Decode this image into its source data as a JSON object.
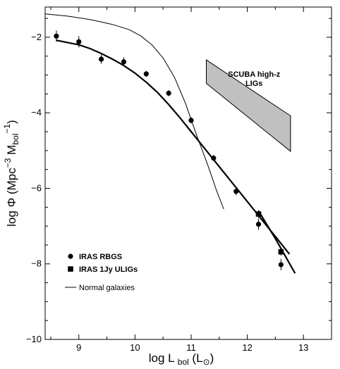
{
  "chart_data": {
    "type": "scatter",
    "title": "",
    "xlabel": {
      "main": "log L",
      "sub": "bol",
      "unit_open": "(L",
      "unit_sym": "⊙",
      "unit_close": ")"
    },
    "ylabel": {
      "main": "log Φ  (Mpc",
      "sup1": "−3",
      "mid": " M",
      "sub": "bol",
      "sup2": "−1",
      "close": ")"
    },
    "xlim": [
      8.4,
      13.5
    ],
    "ylim": [
      -10,
      -1.2
    ],
    "x_ticks": [
      "9",
      "10",
      "11",
      "12",
      "13"
    ],
    "x_tick_values": [
      9,
      10,
      11,
      12,
      13
    ],
    "y_ticks": [
      "−2",
      "−4",
      "−6",
      "−8",
      "−10"
    ],
    "y_tick_values": [
      -2,
      -4,
      -6,
      -8,
      -10
    ],
    "grid": false,
    "series": [
      {
        "name": "IRAS RBGS",
        "marker": "circle",
        "color": "#000000",
        "x": [
          8.6,
          9.0,
          9.4,
          9.8,
          10.2,
          10.6,
          11.0,
          11.4,
          11.8,
          12.2,
          12.6
        ],
        "y": [
          -1.97,
          -2.12,
          -2.58,
          -2.65,
          -2.97,
          -3.48,
          -4.2,
          -5.2,
          -6.08,
          -6.95,
          -8.02
        ],
        "yerr": [
          0.15,
          0.15,
          0.12,
          0.12,
          0.08,
          0.08,
          0.08,
          0.08,
          0.1,
          0.15,
          0.15
        ]
      },
      {
        "name": "IRAS 1Jy ULIGs",
        "marker": "square",
        "color": "#000000",
        "x": [
          12.2,
          12.6
        ],
        "y": [
          -6.68,
          -7.68
        ],
        "yerr": [
          0.1,
          0.1
        ]
      }
    ],
    "curves": [
      {
        "name": "RBGS fit",
        "role": "fit",
        "x": [
          8.6,
          8.8,
          9.0,
          9.2,
          9.4,
          9.6,
          9.8,
          10.0,
          10.2,
          10.4,
          10.6,
          10.8,
          11.0,
          11.2,
          11.4,
          11.6,
          11.8,
          12.0,
          12.2,
          12.4,
          12.6,
          12.75
        ],
        "y": [
          -2.08,
          -2.14,
          -2.2,
          -2.3,
          -2.43,
          -2.58,
          -2.75,
          -2.95,
          -3.19,
          -3.46,
          -3.78,
          -4.13,
          -4.5,
          -4.87,
          -5.24,
          -5.61,
          -5.98,
          -6.35,
          -6.72,
          -7.09,
          -7.46,
          -7.74
        ]
      },
      {
        "name": "ULIG fit",
        "role": "fit",
        "x": [
          12.2,
          12.5,
          12.85
        ],
        "y": [
          -6.6,
          -7.33,
          -8.25
        ]
      },
      {
        "name": "Normal galaxies",
        "role": "model",
        "x": [
          8.4,
          8.8,
          9.2,
          9.6,
          9.9,
          10.1,
          10.3,
          10.5,
          10.7,
          10.9,
          11.1,
          11.3,
          11.45,
          11.58
        ],
        "y": [
          -1.38,
          -1.44,
          -1.53,
          -1.66,
          -1.8,
          -1.96,
          -2.2,
          -2.55,
          -3.05,
          -3.75,
          -4.6,
          -5.4,
          -6.05,
          -6.55
        ]
      }
    ],
    "band": {
      "label": [
        "SCUBA high-z",
        "LIGs"
      ],
      "polygon_x": [
        11.27,
        11.27,
        12.77,
        12.77
      ],
      "polygon_y": [
        -2.6,
        -3.22,
        -5.02,
        -4.08
      ],
      "color": "#c0c0c0"
    },
    "legend": {
      "placement": "lower-left",
      "items": [
        {
          "label": "IRAS RBGS",
          "marker": "circle"
        },
        {
          "label": "IRAS 1Jy ULIGs",
          "marker": "square"
        },
        {
          "label": "Normal galaxies",
          "marker": "line"
        }
      ]
    }
  }
}
